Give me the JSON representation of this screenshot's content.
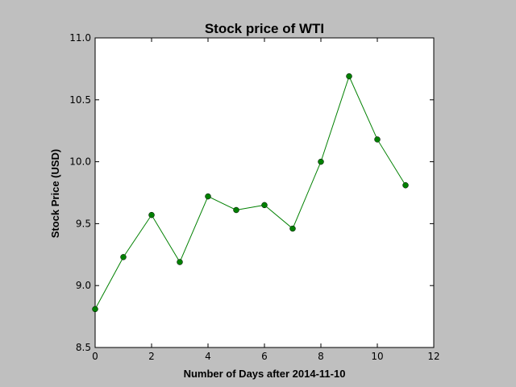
{
  "chart_data": {
    "type": "line",
    "title": "Stock price of WTI",
    "xlabel": "Number of Days after 2014-11-10",
    "ylabel": "Stock Price (USD)",
    "xlim": [
      0,
      12
    ],
    "ylim": [
      8.5,
      11.0
    ],
    "xticks": [
      0,
      2,
      4,
      6,
      8,
      10,
      12
    ],
    "xtick_labels": [
      "0",
      "2",
      "4",
      "6",
      "8",
      "10",
      "12"
    ],
    "yticks": [
      8.5,
      9.0,
      9.5,
      10.0,
      10.5,
      11.0
    ],
    "ytick_labels": [
      "8.5",
      "9.0",
      "9.5",
      "10.0",
      "10.5",
      "11.0"
    ],
    "grid": false,
    "series": [
      {
        "color": "#008000",
        "marker": "circle",
        "x": [
          0,
          1,
          2,
          3,
          4,
          5,
          6,
          7,
          8,
          9,
          10,
          11
        ],
        "y": [
          8.81,
          9.23,
          9.57,
          9.19,
          9.72,
          9.61,
          9.65,
          9.46,
          10.0,
          10.69,
          10.18,
          9.81
        ]
      }
    ]
  }
}
